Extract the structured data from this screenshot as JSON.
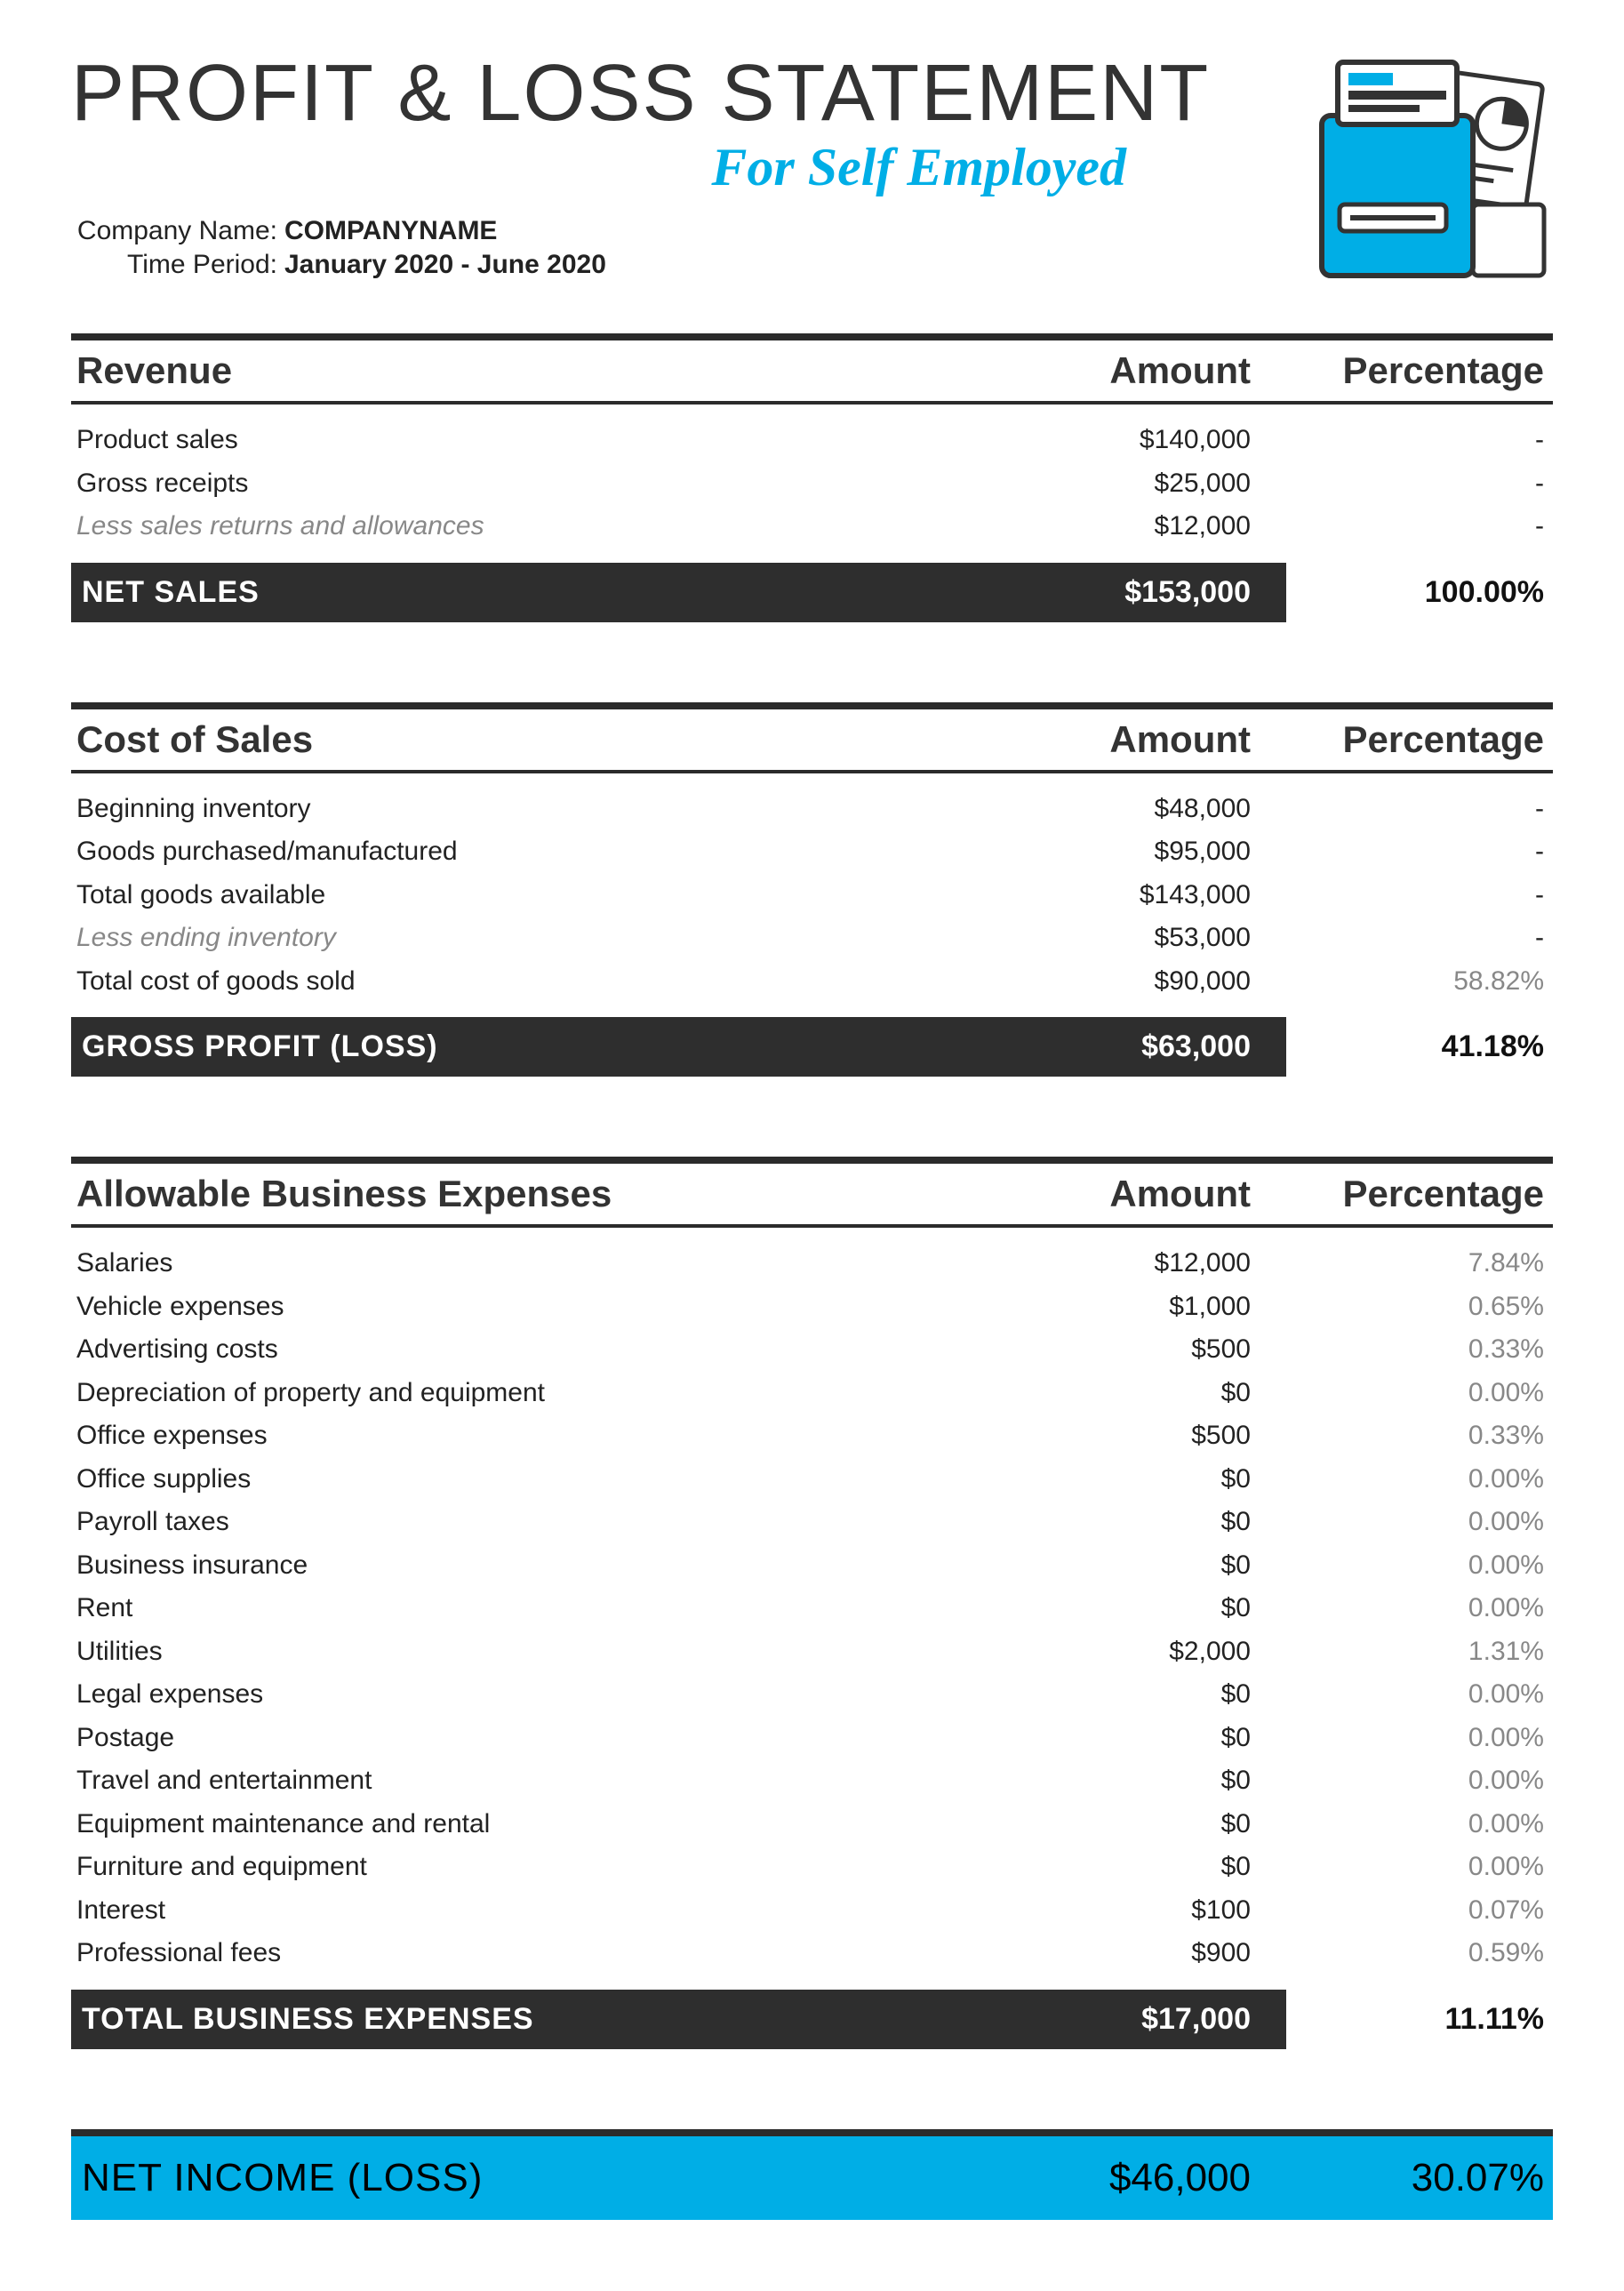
{
  "header": {
    "title": "PROFIT & LOSS STATEMENT",
    "subtitle": "For Self Employed",
    "company_label": "Company Name:",
    "company_value": "COMPANYNAME",
    "period_label": "Time Period:",
    "period_value": "January 2020 - June 2020"
  },
  "colors": {
    "accent": "#00aee6",
    "dark": "#2e2e2e",
    "text": "#222222",
    "muted": "#888888",
    "background": "#ffffff"
  },
  "columns": {
    "amount": "Amount",
    "percentage": "Percentage"
  },
  "revenue": {
    "heading": "Revenue",
    "rows": [
      {
        "label": "Product sales",
        "amount": "$140,000",
        "pct": "-",
        "style": "normal"
      },
      {
        "label": "Gross receipts",
        "amount": "$25,000",
        "pct": "-",
        "style": "normal"
      },
      {
        "label": "Less sales returns and allowances",
        "amount": "$12,000",
        "pct": "-",
        "style": "italic-gray"
      }
    ],
    "total": {
      "label": "NET SALES",
      "amount": "$153,000",
      "pct": "100.00%"
    }
  },
  "cost_of_sales": {
    "heading": "Cost of Sales",
    "rows": [
      {
        "label": "Beginning inventory",
        "amount": "$48,000",
        "pct": "-",
        "style": "normal"
      },
      {
        "label": "Goods purchased/manufactured",
        "amount": "$95,000",
        "pct": "-",
        "style": "normal"
      },
      {
        "label": "Total goods available",
        "amount": "$143,000",
        "pct": "-",
        "style": "normal"
      },
      {
        "label": "Less ending inventory",
        "amount": "$53,000",
        "pct": "-",
        "style": "italic-gray"
      },
      {
        "label": "Total cost of goods sold",
        "amount": "$90,000",
        "pct": "58.82%",
        "style": "normal",
        "pct_gray": true
      }
    ],
    "total": {
      "label": "GROSS PROFIT (LOSS)",
      "amount": "$63,000",
      "pct": "41.18%"
    }
  },
  "expenses": {
    "heading": "Allowable Business Expenses",
    "rows": [
      {
        "label": "Salaries",
        "amount": "$12,000",
        "pct": "7.84%",
        "pct_gray": true
      },
      {
        "label": "Vehicle expenses",
        "amount": "$1,000",
        "pct": "0.65%",
        "pct_gray": true
      },
      {
        "label": "Advertising costs",
        "amount": "$500",
        "pct": "0.33%",
        "pct_gray": true
      },
      {
        "label": "Depreciation of property and equipment",
        "amount": "$0",
        "pct": "0.00%",
        "pct_gray": true
      },
      {
        "label": "Office expenses",
        "amount": "$500",
        "pct": "0.33%",
        "pct_gray": true
      },
      {
        "label": "Office supplies",
        "amount": "$0",
        "pct": "0.00%",
        "pct_gray": true
      },
      {
        "label": "Payroll taxes",
        "amount": "$0",
        "pct": "0.00%",
        "pct_gray": true
      },
      {
        "label": "Business insurance",
        "amount": "$0",
        "pct": "0.00%",
        "pct_gray": true
      },
      {
        "label": "Rent",
        "amount": "$0",
        "pct": "0.00%",
        "pct_gray": true
      },
      {
        "label": "Utilities",
        "amount": "$2,000",
        "pct": "1.31%",
        "pct_gray": true
      },
      {
        "label": "Legal expenses",
        "amount": "$0",
        "pct": "0.00%",
        "pct_gray": true
      },
      {
        "label": "Postage",
        "amount": "$0",
        "pct": "0.00%",
        "pct_gray": true
      },
      {
        "label": "Travel and entertainment",
        "amount": "$0",
        "pct": "0.00%",
        "pct_gray": true
      },
      {
        "label": "Equipment maintenance and rental",
        "amount": "$0",
        "pct": "0.00%",
        "pct_gray": true
      },
      {
        "label": "Furniture and equipment",
        "amount": "$0",
        "pct": "0.00%",
        "pct_gray": true
      },
      {
        "label": "Interest",
        "amount": "$100",
        "pct": "0.07%",
        "pct_gray": true
      },
      {
        "label": "Professional fees",
        "amount": "$900",
        "pct": "0.59%",
        "pct_gray": true
      }
    ],
    "total": {
      "label": "TOTAL BUSINESS EXPENSES",
      "amount": "$17,000",
      "pct": "11.11%"
    }
  },
  "net_income": {
    "label": "NET INCOME (LOSS)",
    "amount": "$46,000",
    "pct": "30.07%"
  }
}
